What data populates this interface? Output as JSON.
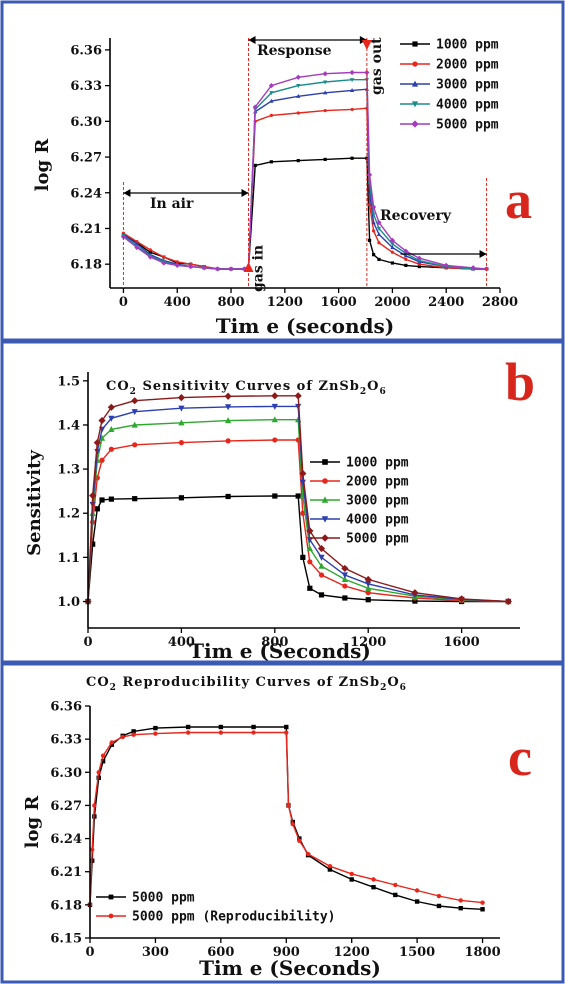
{
  "figure": {
    "border_color": "#3b5ab4",
    "panel_letter_color": "#d8261c"
  },
  "chart_data": [
    {
      "panel_label": "a",
      "type": "line",
      "title": "",
      "xlabel": "Tim e (seconds)",
      "ylabel": "log R",
      "xlim": [
        -100,
        2800
      ],
      "ylim": [
        6.16,
        6.37
      ],
      "xticks": [
        "0",
        "400",
        "800",
        "1200",
        "1600",
        "2000",
        "2400",
        "2800"
      ],
      "xtick_values": [
        0,
        400,
        800,
        1200,
        1600,
        2000,
        2400,
        2800
      ],
      "yticks": [
        "6.18",
        "6.21",
        "6.24",
        "6.27",
        "6.30",
        "6.33",
        "6.36"
      ],
      "ytick_values": [
        6.18,
        6.21,
        6.24,
        6.27,
        6.3,
        6.33,
        6.36
      ],
      "legend_position": "top-right",
      "annotations": {
        "in_air": "In air",
        "response": "Response",
        "recovery": "Recovery",
        "gas_in": "gas in",
        "gas_out": "gas out"
      },
      "series": [
        {
          "name": "1000 ppm",
          "color": "#000000",
          "marker": "square",
          "x": [
            0,
            100,
            200,
            300,
            400,
            500,
            600,
            700,
            800,
            900,
            930,
            980,
            1100,
            1300,
            1500,
            1700,
            1810,
            1830,
            1860,
            1900,
            2000,
            2100,
            2200,
            2400,
            2600,
            2700
          ],
          "y": [
            6.205,
            6.198,
            6.19,
            6.186,
            6.181,
            6.18,
            6.178,
            6.176,
            6.176,
            6.176,
            6.176,
            6.263,
            6.266,
            6.267,
            6.268,
            6.269,
            6.269,
            6.2,
            6.188,
            6.184,
            6.181,
            6.179,
            6.178,
            6.177,
            6.176,
            6.176
          ]
        },
        {
          "name": "2000 ppm",
          "color": "#e8261c",
          "marker": "circle",
          "x": [
            0,
            100,
            200,
            300,
            400,
            500,
            600,
            700,
            800,
            900,
            930,
            980,
            1100,
            1300,
            1500,
            1700,
            1810,
            1830,
            1860,
            1900,
            2000,
            2100,
            2200,
            2400,
            2600,
            2700
          ],
          "y": [
            6.206,
            6.199,
            6.192,
            6.186,
            6.182,
            6.18,
            6.178,
            6.176,
            6.176,
            6.176,
            6.176,
            6.3,
            6.305,
            6.307,
            6.309,
            6.31,
            6.311,
            6.23,
            6.208,
            6.198,
            6.19,
            6.184,
            6.18,
            6.177,
            6.176,
            6.176
          ]
        },
        {
          "name": "3000 ppm",
          "color": "#2c3fb0",
          "marker": "triangle-up",
          "x": [
            0,
            100,
            200,
            300,
            400,
            500,
            600,
            700,
            800,
            900,
            930,
            980,
            1100,
            1300,
            1500,
            1700,
            1810,
            1830,
            1860,
            1900,
            2000,
            2100,
            2200,
            2400,
            2600,
            2700
          ],
          "y": [
            6.205,
            6.197,
            6.188,
            6.183,
            6.18,
            6.178,
            6.177,
            6.176,
            6.176,
            6.176,
            6.176,
            6.308,
            6.317,
            6.321,
            6.324,
            6.326,
            6.327,
            6.24,
            6.215,
            6.205,
            6.194,
            6.187,
            6.182,
            6.178,
            6.176,
            6.176
          ]
        },
        {
          "name": "4000 ppm",
          "color": "#1a8c8c",
          "marker": "triangle-down",
          "x": [
            0,
            100,
            200,
            300,
            400,
            500,
            600,
            700,
            800,
            900,
            930,
            980,
            1100,
            1300,
            1500,
            1700,
            1810,
            1830,
            1860,
            1900,
            2000,
            2100,
            2200,
            2400,
            2600,
            2700
          ],
          "y": [
            6.204,
            6.195,
            6.187,
            6.182,
            6.179,
            6.178,
            6.177,
            6.176,
            6.176,
            6.176,
            6.176,
            6.31,
            6.324,
            6.33,
            6.333,
            6.335,
            6.335,
            6.248,
            6.222,
            6.21,
            6.197,
            6.189,
            6.183,
            6.178,
            6.176,
            6.176
          ]
        },
        {
          "name": "5000 ppm",
          "color": "#a43cbe",
          "marker": "diamond",
          "x": [
            0,
            100,
            200,
            300,
            400,
            500,
            600,
            700,
            800,
            900,
            930,
            980,
            1100,
            1300,
            1500,
            1700,
            1810,
            1830,
            1860,
            1900,
            2000,
            2100,
            2200,
            2400,
            2600,
            2700
          ],
          "y": [
            6.203,
            6.194,
            6.186,
            6.181,
            6.179,
            6.178,
            6.177,
            6.176,
            6.176,
            6.176,
            6.176,
            6.312,
            6.33,
            6.337,
            6.34,
            6.341,
            6.341,
            6.255,
            6.228,
            6.215,
            6.2,
            6.191,
            6.185,
            6.179,
            6.177,
            6.176
          ]
        }
      ]
    },
    {
      "panel_label": "b",
      "type": "line",
      "title_parts": [
        "CO",
        "2",
        " Sensitivity Curves of ZnSb",
        "2",
        "O",
        "6"
      ],
      "xlabel": "Tim e (Seconds)",
      "ylabel": "Sensitivity",
      "xlim": [
        0,
        1850
      ],
      "ylim": [
        0.94,
        1.52
      ],
      "xticks": [
        "0",
        "400",
        "800",
        "1200",
        "1600"
      ],
      "xtick_values": [
        0,
        400,
        800,
        1200,
        1600
      ],
      "yticks": [
        "1.0",
        "1.1",
        "1.2",
        "1.3",
        "1.4",
        "1.5"
      ],
      "ytick_values": [
        1.0,
        1.1,
        1.2,
        1.3,
        1.4,
        1.5
      ],
      "legend_position": "center-right",
      "series": [
        {
          "name": "1000 ppm",
          "color": "#000000",
          "marker": "square",
          "x": [
            0,
            20,
            40,
            60,
            100,
            200,
            400,
            600,
            800,
            900,
            920,
            950,
            1000,
            1100,
            1200,
            1400,
            1600,
            1800
          ],
          "y": [
            1.0,
            1.13,
            1.21,
            1.23,
            1.232,
            1.233,
            1.235,
            1.238,
            1.239,
            1.239,
            1.1,
            1.03,
            1.015,
            1.008,
            1.004,
            1.001,
            1.0,
            1.0
          ]
        },
        {
          "name": "2000 ppm",
          "color": "#e8261c",
          "marker": "circle",
          "x": [
            0,
            20,
            40,
            60,
            100,
            200,
            400,
            600,
            800,
            900,
            920,
            950,
            1000,
            1100,
            1200,
            1400,
            1600,
            1800
          ],
          "y": [
            1.0,
            1.18,
            1.28,
            1.32,
            1.345,
            1.355,
            1.36,
            1.364,
            1.366,
            1.366,
            1.2,
            1.09,
            1.06,
            1.035,
            1.02,
            1.008,
            1.002,
            1.0
          ]
        },
        {
          "name": "3000 ppm",
          "color": "#2ea82e",
          "marker": "triangle-up",
          "x": [
            0,
            20,
            40,
            60,
            100,
            200,
            400,
            600,
            800,
            900,
            920,
            950,
            1000,
            1100,
            1200,
            1400,
            1600,
            1800
          ],
          "y": [
            1.0,
            1.2,
            1.32,
            1.37,
            1.39,
            1.4,
            1.405,
            1.41,
            1.412,
            1.412,
            1.24,
            1.12,
            1.08,
            1.05,
            1.03,
            1.012,
            1.004,
            1.0
          ]
        },
        {
          "name": "4000 ppm",
          "color": "#2c3fb0",
          "marker": "triangle-down",
          "x": [
            0,
            20,
            40,
            60,
            100,
            200,
            400,
            600,
            800,
            900,
            920,
            950,
            1000,
            1100,
            1200,
            1400,
            1600,
            1800
          ],
          "y": [
            1.0,
            1.22,
            1.34,
            1.39,
            1.415,
            1.43,
            1.438,
            1.441,
            1.442,
            1.442,
            1.27,
            1.14,
            1.1,
            1.06,
            1.04,
            1.015,
            1.005,
            1.0
          ]
        },
        {
          "name": "5000 ppm",
          "color": "#8b1a1a",
          "marker": "diamond",
          "x": [
            0,
            20,
            40,
            60,
            100,
            200,
            400,
            600,
            800,
            900,
            920,
            950,
            1000,
            1100,
            1200,
            1400,
            1600,
            1800
          ],
          "y": [
            1.0,
            1.24,
            1.36,
            1.41,
            1.44,
            1.455,
            1.462,
            1.465,
            1.466,
            1.466,
            1.29,
            1.16,
            1.12,
            1.075,
            1.05,
            1.02,
            1.006,
            1.0
          ]
        }
      ]
    },
    {
      "panel_label": "c",
      "type": "line",
      "title_parts": [
        "CO",
        "2",
        " Reproducibility Curves of ZnSb",
        "2",
        "O",
        "6"
      ],
      "xlabel": "Tim e (Seconds)",
      "ylabel": "log R",
      "xlim": [
        0,
        1880
      ],
      "ylim": [
        6.15,
        6.36
      ],
      "xticks": [
        "0",
        "300",
        "600",
        "900",
        "1200",
        "1500",
        "1800"
      ],
      "xtick_values": [
        0,
        300,
        600,
        900,
        1200,
        1500,
        1800
      ],
      "yticks": [
        "6.15",
        "6.18",
        "6.21",
        "6.24",
        "6.27",
        "6.30",
        "6.33",
        "6.36"
      ],
      "ytick_values": [
        6.15,
        6.18,
        6.21,
        6.24,
        6.27,
        6.3,
        6.33,
        6.36
      ],
      "legend_position": "bottom-left",
      "series": [
        {
          "name": "5000 ppm",
          "color": "#000000",
          "marker": "square",
          "x": [
            0,
            10,
            20,
            40,
            60,
            100,
            150,
            200,
            300,
            450,
            600,
            750,
            900,
            910,
            930,
            960,
            1000,
            1100,
            1200,
            1300,
            1400,
            1500,
            1600,
            1700,
            1800
          ],
          "y": [
            6.18,
            6.22,
            6.26,
            6.295,
            6.31,
            6.325,
            6.333,
            6.337,
            6.34,
            6.341,
            6.341,
            6.341,
            6.341,
            6.27,
            6.255,
            6.24,
            6.225,
            6.212,
            6.203,
            6.196,
            6.189,
            6.183,
            6.179,
            6.177,
            6.176
          ]
        },
        {
          "name": "5000 ppm (Reproducibility)",
          "color": "#e8261c",
          "marker": "circle",
          "x": [
            0,
            10,
            20,
            40,
            60,
            100,
            150,
            200,
            300,
            450,
            600,
            750,
            900,
            910,
            930,
            960,
            1000,
            1100,
            1200,
            1300,
            1400,
            1500,
            1600,
            1700,
            1800
          ],
          "y": [
            6.18,
            6.23,
            6.27,
            6.3,
            6.315,
            6.327,
            6.332,
            6.334,
            6.335,
            6.336,
            6.336,
            6.336,
            6.336,
            6.27,
            6.253,
            6.238,
            6.226,
            6.215,
            6.208,
            6.203,
            6.198,
            6.193,
            6.188,
            6.184,
            6.182
          ]
        }
      ]
    }
  ]
}
